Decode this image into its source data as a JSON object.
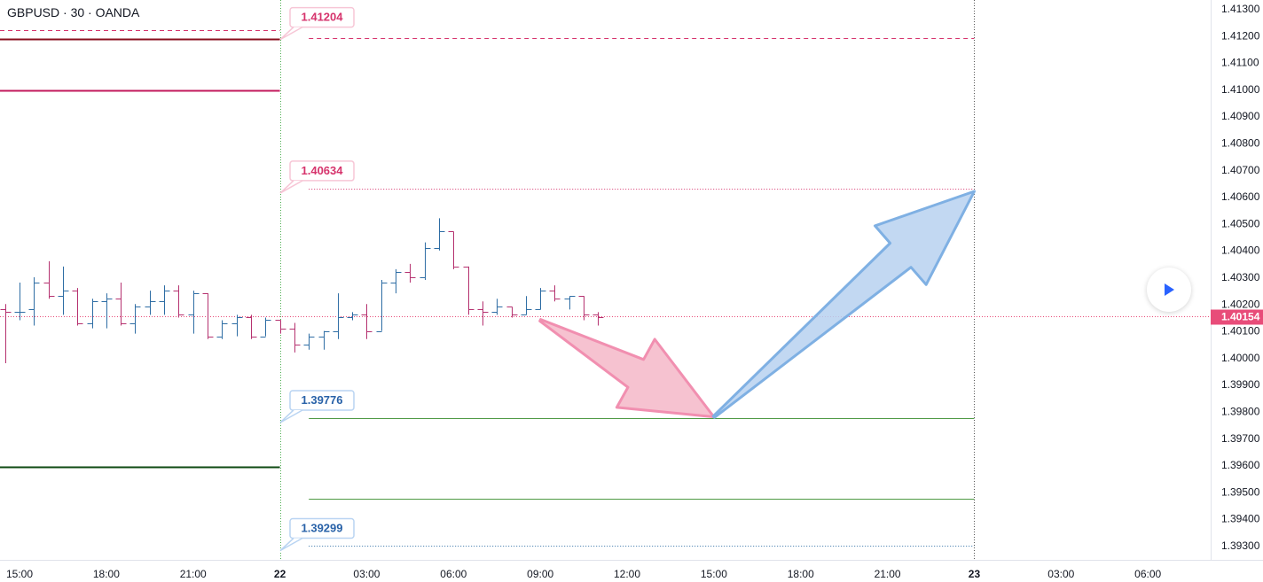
{
  "title": "GBPUSD · 30 · OANDA",
  "play_icon": "play-icon",
  "colors": {
    "up": "#2e6da4",
    "down": "#b5316f",
    "grid_line_bg": "#ffffff",
    "red_line": "#880e1e",
    "pink_line": "#c2185b",
    "dark_green": "#0d4a12",
    "green": "#4f9a45",
    "pink_label": "#d6336c",
    "blue_label": "#2962a8",
    "price_tag": "#e84c79",
    "vline": "#4caf50",
    "down_arrow_fill": "#f5b7c8",
    "down_arrow_stroke": "#f18fb0",
    "up_arrow_fill": "#b7d1f0",
    "up_arrow_stroke": "#7fb0e3"
  },
  "chart_data": {
    "type": "ohlc",
    "symbol": "GBPUSD",
    "interval": "30",
    "source": "OANDA",
    "y_axis": {
      "ticks": [
        "1.41300",
        "1.41200",
        "1.41100",
        "1.41000",
        "1.40900",
        "1.40800",
        "1.40700",
        "1.40600",
        "1.40500",
        "1.40400",
        "1.40300",
        "1.40200",
        "1.40100",
        "1.40000",
        "1.39900",
        "1.39800",
        "1.39700",
        "1.39600",
        "1.39500",
        "1.39400",
        "1.39300"
      ],
      "range": [
        1.3925,
        1.4133
      ]
    },
    "x_axis": {
      "ticks": [
        {
          "label": "15:00",
          "hour": 15
        },
        {
          "label": "18:00",
          "hour": 18
        },
        {
          "label": "21:00",
          "hour": 21
        },
        {
          "label": "22",
          "hour": 24,
          "bold": true
        },
        {
          "label": "03:00",
          "hour": 27
        },
        {
          "label": "06:00",
          "hour": 30
        },
        {
          "label": "09:00",
          "hour": 33
        },
        {
          "label": "12:00",
          "hour": 36
        },
        {
          "label": "15:00",
          "hour": 39
        },
        {
          "label": "18:00",
          "hour": 42
        },
        {
          "label": "21:00",
          "hour": 45
        },
        {
          "label": "23",
          "hour": 48,
          "bold": true
        },
        {
          "label": "03:00",
          "hour": 51
        },
        {
          "label": "06:00",
          "hour": 54
        }
      ],
      "range_hours": [
        14.45,
        55.25
      ]
    },
    "candles": [
      {
        "t": 14.5,
        "o": 1.4018,
        "h": 1.402,
        "l": 1.3998,
        "c": 1.4017
      },
      {
        "t": 15.0,
        "o": 1.4017,
        "h": 1.4028,
        "l": 1.4014,
        "c": 1.4017
      },
      {
        "t": 15.5,
        "o": 1.4018,
        "h": 1.403,
        "l": 1.4012,
        "c": 1.4028
      },
      {
        "t": 16.0,
        "o": 1.4028,
        "h": 1.4036,
        "l": 1.4022,
        "c": 1.4023
      },
      {
        "t": 16.5,
        "o": 1.4023,
        "h": 1.4034,
        "l": 1.4016,
        "c": 1.4025
      },
      {
        "t": 17.0,
        "o": 1.4025,
        "h": 1.4026,
        "l": 1.4012,
        "c": 1.4013
      },
      {
        "t": 17.5,
        "o": 1.4013,
        "h": 1.4022,
        "l": 1.4011,
        "c": 1.4021
      },
      {
        "t": 18.0,
        "o": 1.4021,
        "h": 1.4024,
        "l": 1.4011,
        "c": 1.4022
      },
      {
        "t": 18.5,
        "o": 1.4022,
        "h": 1.4028,
        "l": 1.4012,
        "c": 1.4013
      },
      {
        "t": 19.0,
        "o": 1.4013,
        "h": 1.402,
        "l": 1.4009,
        "c": 1.4019
      },
      {
        "t": 19.5,
        "o": 1.4019,
        "h": 1.4025,
        "l": 1.4016,
        "c": 1.4021
      },
      {
        "t": 20.0,
        "o": 1.4021,
        "h": 1.4027,
        "l": 1.4016,
        "c": 1.4025
      },
      {
        "t": 20.5,
        "o": 1.4025,
        "h": 1.4027,
        "l": 1.4015,
        "c": 1.4016
      },
      {
        "t": 21.0,
        "o": 1.4016,
        "h": 1.4025,
        "l": 1.4009,
        "c": 1.4024
      },
      {
        "t": 21.5,
        "o": 1.4024,
        "h": 1.4024,
        "l": 1.4007,
        "c": 1.4008
      },
      {
        "t": 22.0,
        "o": 1.4008,
        "h": 1.4014,
        "l": 1.4007,
        "c": 1.4013
      },
      {
        "t": 22.5,
        "o": 1.4013,
        "h": 1.4016,
        "l": 1.4008,
        "c": 1.4015
      },
      {
        "t": 23.0,
        "o": 1.4015,
        "h": 1.4016,
        "l": 1.4007,
        "c": 1.4008
      },
      {
        "t": 23.5,
        "o": 1.4008,
        "h": 1.4015,
        "l": 1.4008,
        "c": 1.4014
      },
      {
        "t": 24.0,
        "o": 1.4014,
        "h": 1.4014,
        "l": 1.4009,
        "c": 1.4011
      },
      {
        "t": 24.5,
        "o": 1.4011,
        "h": 1.4013,
        "l": 1.4002,
        "c": 1.4005
      },
      {
        "t": 25.0,
        "o": 1.4005,
        "h": 1.4009,
        "l": 1.4003,
        "c": 1.4008
      },
      {
        "t": 25.5,
        "o": 1.4008,
        "h": 1.401,
        "l": 1.4003,
        "c": 1.401
      },
      {
        "t": 26.0,
        "o": 1.401,
        "h": 1.4024,
        "l": 1.4007,
        "c": 1.4015
      },
      {
        "t": 26.5,
        "o": 1.4015,
        "h": 1.4017,
        "l": 1.4014,
        "c": 1.4016
      },
      {
        "t": 27.0,
        "o": 1.4016,
        "h": 1.402,
        "l": 1.4007,
        "c": 1.401
      },
      {
        "t": 27.5,
        "o": 1.401,
        "h": 1.4029,
        "l": 1.401,
        "c": 1.4028
      },
      {
        "t": 28.0,
        "o": 1.4028,
        "h": 1.4033,
        "l": 1.4024,
        "c": 1.4032
      },
      {
        "t": 28.5,
        "o": 1.4032,
        "h": 1.4035,
        "l": 1.4028,
        "c": 1.403
      },
      {
        "t": 29.0,
        "o": 1.403,
        "h": 1.4043,
        "l": 1.4029,
        "c": 1.4041
      },
      {
        "t": 29.5,
        "o": 1.4041,
        "h": 1.4052,
        "l": 1.404,
        "c": 1.4047
      },
      {
        "t": 30.0,
        "o": 1.4047,
        "h": 1.4047,
        "l": 1.4033,
        "c": 1.4034
      },
      {
        "t": 30.5,
        "o": 1.4034,
        "h": 1.4034,
        "l": 1.4016,
        "c": 1.4018
      },
      {
        "t": 31.0,
        "o": 1.4018,
        "h": 1.4021,
        "l": 1.4012,
        "c": 1.4017
      },
      {
        "t": 31.5,
        "o": 1.4017,
        "h": 1.4022,
        "l": 1.4016,
        "c": 1.4019
      },
      {
        "t": 32.0,
        "o": 1.4019,
        "h": 1.4019,
        "l": 1.4015,
        "c": 1.4016
      },
      {
        "t": 32.5,
        "o": 1.4016,
        "h": 1.4023,
        "l": 1.4016,
        "c": 1.4018
      },
      {
        "t": 33.0,
        "o": 1.4018,
        "h": 1.4026,
        "l": 1.4018,
        "c": 1.4025
      },
      {
        "t": 33.5,
        "o": 1.4025,
        "h": 1.4027,
        "l": 1.4021,
        "c": 1.4022
      },
      {
        "t": 34.0,
        "o": 1.4022,
        "h": 1.4023,
        "l": 1.4018,
        "c": 1.4023
      },
      {
        "t": 34.5,
        "o": 1.4023,
        "h": 1.4023,
        "l": 1.4014,
        "c": 1.4016
      },
      {
        "t": 35.0,
        "o": 1.4016,
        "h": 1.4017,
        "l": 1.4012,
        "c": 1.4015
      }
    ],
    "current_price": {
      "value": 1.40154,
      "label": "1.40154"
    },
    "horizontal_lines": [
      {
        "y": 1.41222,
        "from": 0,
        "to": 24,
        "style": "dashed",
        "color": "#d6336c"
      },
      {
        "y": 1.41188,
        "from": 0,
        "to": 24,
        "style": "solid",
        "color": "#880e1e",
        "width": 2
      },
      {
        "y": 1.40995,
        "from": 0,
        "to": 24,
        "style": "solid",
        "color": "#c2185b",
        "width": 2
      },
      {
        "y": 1.39595,
        "from": 0,
        "to": 24,
        "style": "solid",
        "color": "#0d4a12",
        "width": 2
      },
      {
        "y": 1.4119,
        "from": 25,
        "to": 48,
        "style": "dashed",
        "color": "#d6336c"
      },
      {
        "y": 1.4063,
        "from": 25,
        "to": 48,
        "style": "dotted",
        "color": "#d6336c"
      },
      {
        "y": 1.39776,
        "from": 25,
        "to": 48,
        "style": "solid",
        "color": "#4f9a45"
      },
      {
        "y": 1.39475,
        "from": 25,
        "to": 48,
        "style": "solid",
        "color": "#4f9a45"
      },
      {
        "y": 1.39299,
        "from": 25,
        "to": 48,
        "style": "dotted",
        "color": "#2e6da4"
      }
    ],
    "price_labels": [
      {
        "text": "1.41204",
        "y": 1.41204,
        "anchor_y": 1.41232,
        "color": "pink"
      },
      {
        "text": "1.40634",
        "y": 1.40634,
        "anchor_y": 1.4066,
        "color": "pink"
      },
      {
        "text": "1.39776",
        "y": 1.39776,
        "anchor_y": 1.39805,
        "color": "blue"
      },
      {
        "text": "1.39299",
        "y": 1.39299,
        "anchor_y": 1.39328,
        "color": "blue"
      }
    ],
    "arrows": [
      {
        "name": "down",
        "from": {
          "t": 33.0,
          "y": 1.4014
        },
        "to": {
          "t": 39.0,
          "y": 1.3978
        },
        "color": "pink"
      },
      {
        "name": "up",
        "from": {
          "t": 39.0,
          "y": 1.3978
        },
        "to": {
          "t": 48.0,
          "y": 1.4062
        },
        "color": "blue"
      }
    ],
    "vertical_markers": [
      {
        "t": 24,
        "style": "dotted",
        "color": "#4caf50"
      },
      {
        "t": 48,
        "style": "dotted",
        "color": "#555555"
      }
    ]
  }
}
